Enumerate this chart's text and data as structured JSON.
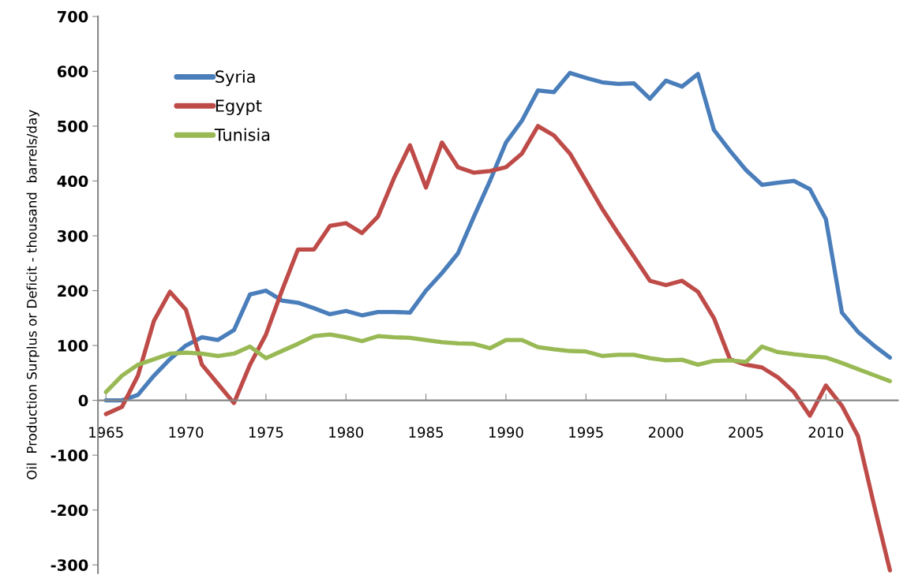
{
  "chart_data": {
    "type": "line",
    "ylabel": "Oil  Production Surplus or Deficit - thousand  barrels/day",
    "x": [
      1965,
      1966,
      1967,
      1968,
      1969,
      1970,
      1971,
      1972,
      1973,
      1974,
      1975,
      1976,
      1977,
      1978,
      1979,
      1980,
      1981,
      1982,
      1983,
      1984,
      1985,
      1986,
      1987,
      1988,
      1989,
      1990,
      1991,
      1992,
      1993,
      1994,
      1995,
      1996,
      1997,
      1998,
      1999,
      2000,
      2001,
      2002,
      2003,
      2004,
      2005,
      2006,
      2007,
      2008,
      2009,
      2010,
      2011,
      2012,
      2013,
      2014
    ],
    "series": [
      {
        "name": "Syria",
        "color": "#4a7ebb",
        "values": [
          0,
          0,
          10,
          45,
          75,
          100,
          115,
          110,
          128,
          193,
          200,
          182,
          178,
          168,
          157,
          163,
          155,
          161,
          161,
          160,
          200,
          232,
          268,
          335,
          400,
          470,
          510,
          565,
          562,
          597,
          588,
          580,
          577,
          578,
          550,
          583,
          572,
          595,
          493,
          455,
          420,
          393,
          397,
          400,
          385,
          330,
          160,
          125,
          100,
          78
        ]
      },
      {
        "name": "Egypt",
        "color": "#be4b48",
        "values": [
          -25,
          -12,
          45,
          145,
          198,
          165,
          65,
          30,
          -5,
          65,
          120,
          200,
          275,
          275,
          318,
          323,
          305,
          335,
          405,
          465,
          388,
          470,
          425,
          415,
          418,
          425,
          450,
          500,
          483,
          450,
          400,
          350,
          305,
          262,
          218,
          210,
          218,
          198,
          150,
          75,
          65,
          60,
          42,
          15,
          -28,
          27,
          -10,
          -65,
          -190,
          -310
        ]
      },
      {
        "name": "Tunisia",
        "color": "#98b954",
        "values": [
          15,
          45,
          65,
          75,
          85,
          87,
          85,
          81,
          85,
          98,
          77,
          90,
          103,
          117,
          120,
          115,
          108,
          117,
          115,
          114,
          110,
          106,
          104,
          103,
          95,
          110,
          110,
          97,
          93,
          90,
          89,
          81,
          83,
          83,
          77,
          73,
          74,
          65,
          72,
          73,
          70,
          98,
          88,
          84,
          81,
          78,
          68,
          57,
          46,
          35
        ]
      }
    ],
    "xlim": [
      1964.5,
      2014.5
    ],
    "xticks": [
      1965,
      1970,
      1975,
      1980,
      1985,
      1990,
      1995,
      2000,
      2005,
      2010
    ],
    "ylim": [
      -315,
      700
    ],
    "yticks": [
      -300,
      -200,
      -100,
      0,
      100,
      200,
      300,
      400,
      500,
      600,
      700
    ],
    "grid": false,
    "legend": "top left",
    "marker": "none",
    "line_style": "solid"
  }
}
